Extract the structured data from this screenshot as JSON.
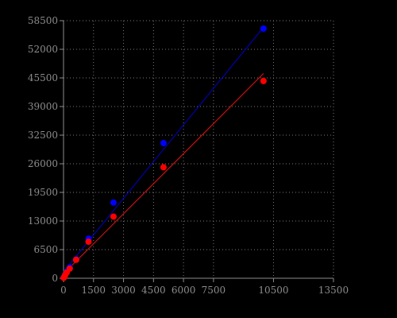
{
  "chart_data": {
    "type": "scatter",
    "title": "",
    "xlabel": "",
    "ylabel": "",
    "xlim": [
      0,
      13500
    ],
    "ylim": [
      0,
      58500
    ],
    "x_ticks": [
      0,
      1500,
      3000,
      4500,
      6000,
      7500,
      10500,
      13500
    ],
    "x_tick_labels": [
      "0",
      "1500",
      "3000",
      "4500",
      "6000",
      "7500",
      "10500",
      "13500"
    ],
    "y_ticks": [
      0,
      6500,
      13000,
      19500,
      26000,
      32500,
      39000,
      45500,
      52000,
      58500
    ],
    "y_tick_labels": [
      "0",
      "6500",
      "13000",
      "19500",
      "26000",
      "32500",
      "39000",
      "45500",
      "52000",
      "58500"
    ],
    "grid": true,
    "series": [
      {
        "color": "#0000ff",
        "line_color": "#0000aa",
        "points": [
          {
            "x": 10,
            "y": 150
          },
          {
            "x": 40,
            "y": 400
          },
          {
            "x": 80,
            "y": 800
          },
          {
            "x": 160,
            "y": 1500
          },
          {
            "x": 310,
            "y": 2500
          },
          {
            "x": 630,
            "y": 4300
          },
          {
            "x": 1250,
            "y": 9000
          },
          {
            "x": 2500,
            "y": 17200
          },
          {
            "x": 5000,
            "y": 30700
          },
          {
            "x": 10000,
            "y": 56700
          }
        ],
        "fit": [
          [
            0,
            1500
          ],
          [
            10000,
            57000
          ]
        ]
      },
      {
        "color": "#ff0000",
        "line_color": "#c81010",
        "points": [
          {
            "x": 10,
            "y": 100
          },
          {
            "x": 40,
            "y": 300
          },
          {
            "x": 80,
            "y": 700
          },
          {
            "x": 160,
            "y": 1300
          },
          {
            "x": 310,
            "y": 2200
          },
          {
            "x": 630,
            "y": 4200
          },
          {
            "x": 1250,
            "y": 8300
          },
          {
            "x": 2500,
            "y": 14000
          },
          {
            "x": 5000,
            "y": 25200
          },
          {
            "x": 10000,
            "y": 44800
          }
        ],
        "fit": [
          [
            0,
            1000
          ],
          [
            10000,
            46500
          ]
        ]
      }
    ]
  }
}
